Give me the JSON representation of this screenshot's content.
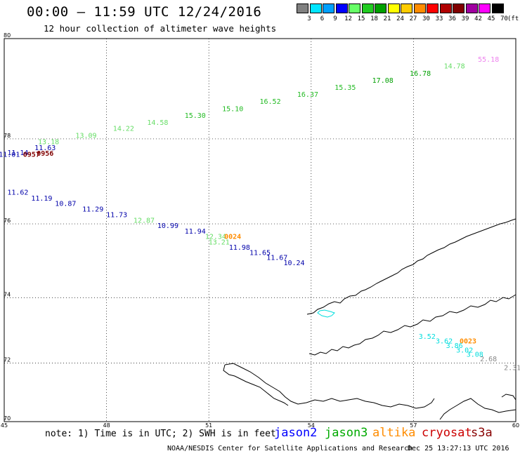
{
  "title": "00:00 – 11:59 UTC 12/24/2016",
  "subtitle": "12 hour collection of altimeter wave heights",
  "legend": {
    "unit": "(ft)",
    "bins": [
      {
        "label": "3",
        "color": "#808080"
      },
      {
        "label": "6",
        "color": "#00e5ff"
      },
      {
        "label": "9",
        "color": "#00a0ff"
      },
      {
        "label": "12",
        "color": "#0000ff"
      },
      {
        "label": "15",
        "color": "#66ff66"
      },
      {
        "label": "18",
        "color": "#22cc22"
      },
      {
        "label": "21",
        "color": "#00a000"
      },
      {
        "label": "24",
        "color": "#ffff00"
      },
      {
        "label": "27",
        "color": "#ffcc00"
      },
      {
        "label": "30",
        "color": "#ff8c00"
      },
      {
        "label": "33",
        "color": "#ff0000"
      },
      {
        "label": "36",
        "color": "#b00000"
      },
      {
        "label": "39",
        "color": "#800000"
      },
      {
        "label": "42",
        "color": "#a000a0"
      },
      {
        "label": "45",
        "color": "#ff00ff"
      },
      {
        "label": "70",
        "color": "#000000"
      }
    ]
  },
  "axes": {
    "lon_ticks": [
      "45",
      "48",
      "51",
      "54",
      "57",
      "60"
    ],
    "lat_ticks": [
      "70",
      "72",
      "74",
      "76",
      "78",
      "80"
    ]
  },
  "map_data": {
    "extent": {
      "lon": [
        45,
        60
      ],
      "lat": [
        70,
        80
      ]
    },
    "projection": "mercator",
    "soundings": [
      {
        "v": "55.18",
        "c": "#ee82ee",
        "lon": 59.2,
        "lat": 79.57
      },
      {
        "v": "14.78",
        "c": "#66dd66",
        "lon": 58.2,
        "lat": 79.44
      },
      {
        "v": "16.78",
        "c": "#00a000",
        "lon": 57.2,
        "lat": 79.3
      },
      {
        "v": "17.08",
        "c": "#00a000",
        "lon": 56.1,
        "lat": 79.16
      },
      {
        "v": "15.35",
        "c": "#22bb22",
        "lon": 55.0,
        "lat": 79.02
      },
      {
        "v": "16.37",
        "c": "#22bb22",
        "lon": 53.9,
        "lat": 78.88
      },
      {
        "v": "16.52",
        "c": "#22bb22",
        "lon": 52.8,
        "lat": 78.74
      },
      {
        "v": "15.10",
        "c": "#22bb22",
        "lon": 51.7,
        "lat": 78.59
      },
      {
        "v": "15.30",
        "c": "#22bb22",
        "lon": 50.6,
        "lat": 78.45
      },
      {
        "v": "14.58",
        "c": "#66dd66",
        "lon": 49.5,
        "lat": 78.3
      },
      {
        "v": "14.22",
        "c": "#66dd66",
        "lon": 48.5,
        "lat": 78.17
      },
      {
        "v": "13.09",
        "c": "#66dd66",
        "lon": 47.4,
        "lat": 78.02
      },
      {
        "v": "13.18",
        "c": "#66dd66",
        "lon": 46.3,
        "lat": 77.88
      },
      {
        "v": "11.63",
        "c": "#0000aa",
        "lon": 46.2,
        "lat": 77.75
      },
      {
        "v": "11.14",
        "c": "#0000aa",
        "lon": 45.4,
        "lat": 77.64
      },
      {
        "v": "11.01",
        "c": "#0000aa",
        "lon": 45.15,
        "lat": 77.6
      },
      {
        "v": "0956",
        "c": "#800000",
        "lon": 46.2,
        "lat": 77.63,
        "label": true
      },
      {
        "v": "0957",
        "c": "#800000",
        "lon": 45.8,
        "lat": 77.6,
        "label": true
      },
      {
        "v": "11.62",
        "c": "#0000aa",
        "lon": 45.4,
        "lat": 76.72
      },
      {
        "v": "11.19",
        "c": "#0000aa",
        "lon": 46.1,
        "lat": 76.58
      },
      {
        "v": "10.87",
        "c": "#0000aa",
        "lon": 46.8,
        "lat": 76.45
      },
      {
        "v": "11.29",
        "c": "#0000aa",
        "lon": 47.6,
        "lat": 76.31
      },
      {
        "v": "11.73",
        "c": "#0000aa",
        "lon": 48.3,
        "lat": 76.17
      },
      {
        "v": "12.87",
        "c": "#66dd66",
        "lon": 49.1,
        "lat": 76.03
      },
      {
        "v": "10.99",
        "c": "#0000aa",
        "lon": 49.8,
        "lat": 75.89
      },
      {
        "v": "11.94",
        "c": "#0000aa",
        "lon": 50.6,
        "lat": 75.75
      },
      {
        "v": "12.34",
        "c": "#66dd66",
        "lon": 51.2,
        "lat": 75.61
      },
      {
        "v": "13.21",
        "c": "#66dd66",
        "lon": 51.3,
        "lat": 75.47
      },
      {
        "v": "0024",
        "c": "#ff8c00",
        "lon": 51.7,
        "lat": 75.61,
        "label": true
      },
      {
        "v": "11.98",
        "c": "#0000aa",
        "lon": 51.9,
        "lat": 75.33
      },
      {
        "v": "11.65",
        "c": "#0000aa",
        "lon": 52.5,
        "lat": 75.19
      },
      {
        "v": "11.67",
        "c": "#0000aa",
        "lon": 53.0,
        "lat": 75.05
      },
      {
        "v": "10.24",
        "c": "#0000aa",
        "lon": 53.5,
        "lat": 74.91
      },
      {
        "v": "3.52",
        "c": "#00dddd",
        "lon": 57.4,
        "lat": 72.76
      },
      {
        "v": "3.62",
        "c": "#00dddd",
        "lon": 57.9,
        "lat": 72.62
      },
      {
        "v": "0023",
        "c": "#ff8c00",
        "lon": 58.6,
        "lat": 72.62,
        "label": true
      },
      {
        "v": "3.86",
        "c": "#00dddd",
        "lon": 58.2,
        "lat": 72.48
      },
      {
        "v": "3.02",
        "c": "#00dddd",
        "lon": 58.5,
        "lat": 72.34
      },
      {
        "v": "3.08",
        "c": "#00dddd",
        "lon": 58.8,
        "lat": 72.2
      },
      {
        "v": "2.68",
        "c": "#888888",
        "lon": 59.2,
        "lat": 72.05
      },
      {
        "v": "2.31",
        "c": "#888888",
        "lon": 59.9,
        "lat": 71.77
      }
    ]
  },
  "note": "note: 1) Time is in UTC; 2) SWH is in feet",
  "missions": [
    {
      "name": "jason2",
      "color": "#0000ff"
    },
    {
      "name": "jason3",
      "color": "#00aa00"
    },
    {
      "name": "altika",
      "color": "#ff8c00"
    },
    {
      "name": "cryosat",
      "color": "#cc0000"
    },
    {
      "name": "s3a",
      "color": "#880000"
    }
  ],
  "footer": "NOAA/NESDIS Center for Satellite Applications and Research",
  "footer_time": "Dec 25 13:27:13 UTC 2016"
}
